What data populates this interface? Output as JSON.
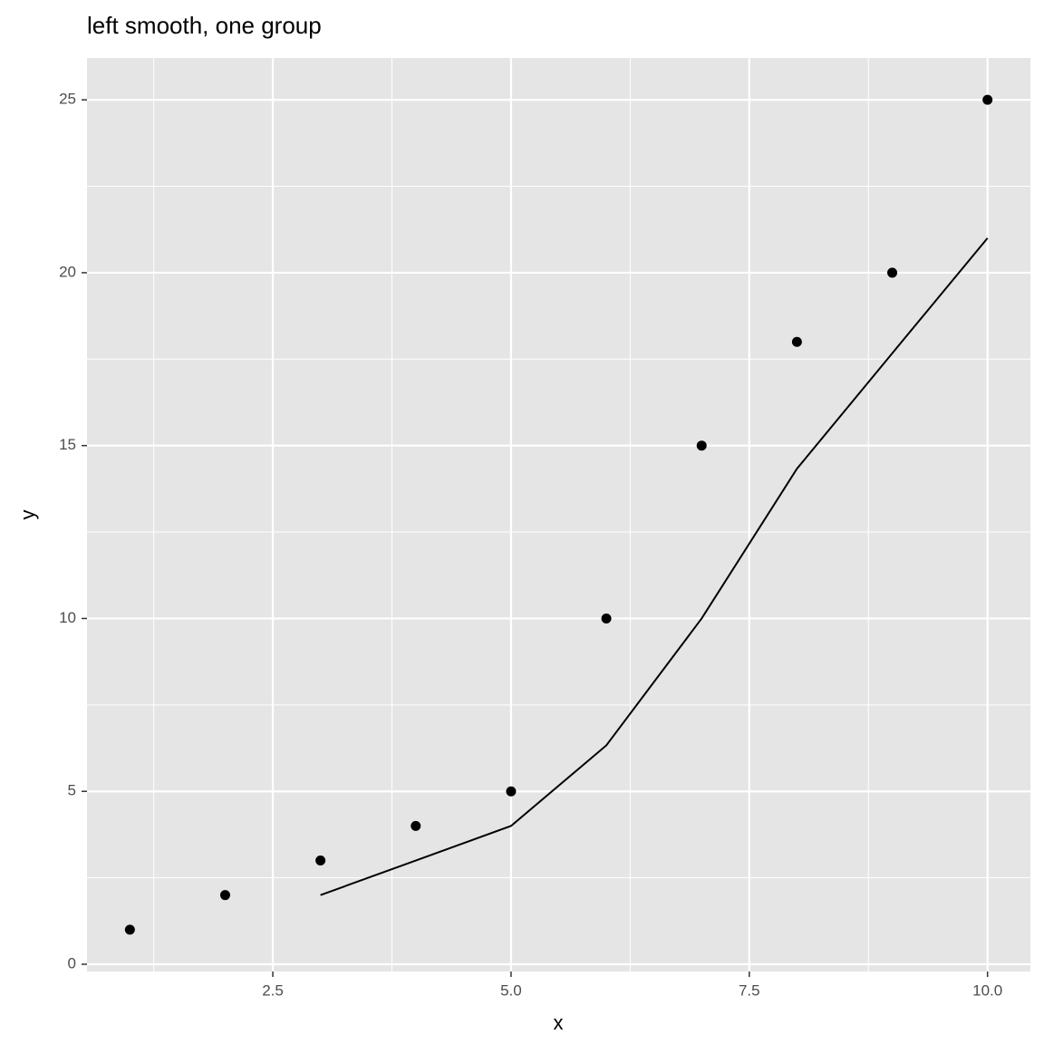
{
  "chart_data": {
    "type": "scatter",
    "title": "left smooth, one group",
    "x_label": "x",
    "y_label": "y",
    "x": [
      1,
      2,
      3,
      4,
      5,
      6,
      7,
      8,
      9,
      10
    ],
    "values": [
      1,
      2,
      3,
      4,
      5,
      10,
      15,
      18,
      20,
      25
    ],
    "color": "#000000",
    "line": {
      "x": [
        3,
        4,
        5,
        6,
        7,
        8,
        9,
        10
      ],
      "values": [
        2,
        3,
        4,
        6.33,
        10,
        14.33,
        17.67,
        21
      ],
      "color": "#000000"
    },
    "xlim": [
      0.55,
      10.45
    ],
    "ylim": [
      -0.21,
      26.21
    ],
    "xticks": [
      {
        "value": 2.5,
        "label": "2.5"
      },
      {
        "value": 5,
        "label": "5.0"
      },
      {
        "value": 7.5,
        "label": "7.5"
      },
      {
        "value": 10,
        "label": "10.0"
      }
    ],
    "yticks": [
      0,
      5,
      10,
      15,
      20,
      25
    ],
    "x_minor_ticks": [
      1.25,
      3.75,
      6.25,
      8.75
    ],
    "y_minor_ticks": [
      2.5,
      7.5,
      12.5,
      17.5,
      22.5
    ],
    "grid": true,
    "background": "#e5e5e5"
  }
}
